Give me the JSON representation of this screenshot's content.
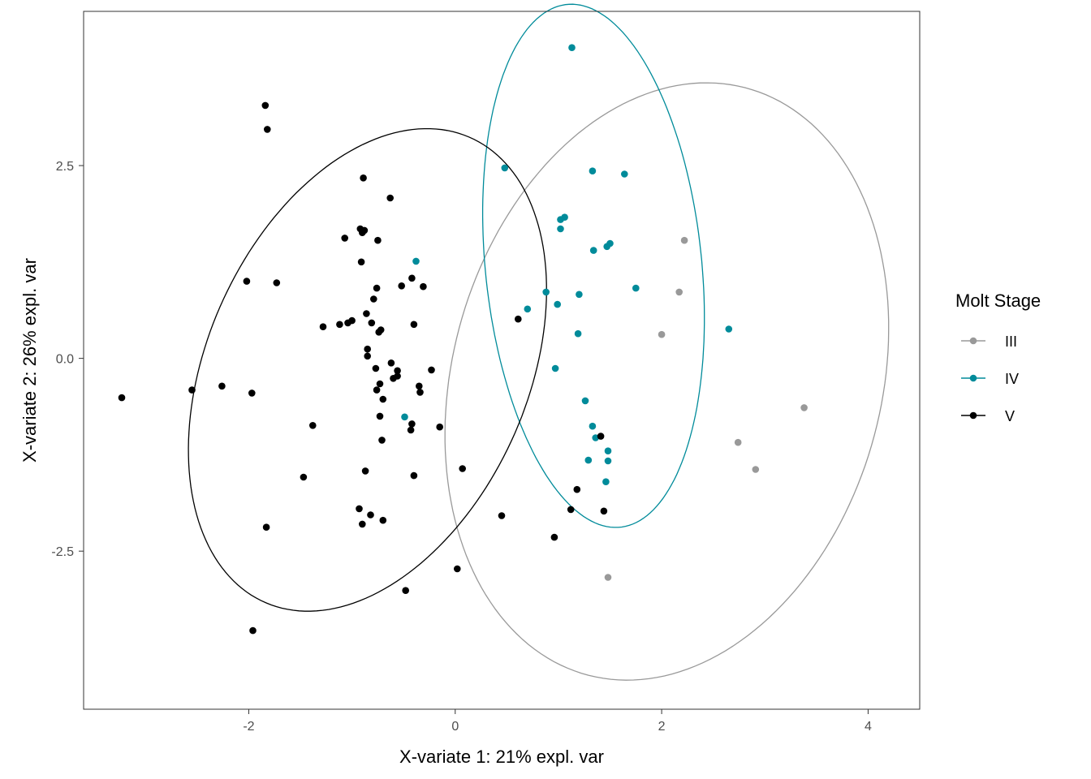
{
  "chart_data": {
    "type": "scatter",
    "title": "",
    "xlabel": "X-variate 1: 21% expl. var",
    "ylabel": "X-variate 2: 26% expl. var",
    "xlim": [
      -3.6,
      4.5
    ],
    "ylim": [
      -4.55,
      4.5
    ],
    "x_ticks": [
      -2,
      0,
      2,
      4
    ],
    "x_tick_labels": [
      "-2",
      "0",
      "2",
      "4"
    ],
    "y_ticks": [
      -2.5,
      0,
      2.5
    ],
    "y_tick_labels": [
      "-2.5",
      "0.0",
      "2.5"
    ],
    "grid": false,
    "legend": {
      "title": "Molt Stage",
      "placement": "right"
    },
    "series": [
      {
        "name": "III",
        "color": "#999999",
        "ellipse": {
          "cx": 2.05,
          "cy": -0.3,
          "rx": 2.1,
          "ry": 3.9,
          "angle_deg": -8
        },
        "points": [
          {
            "x": 2.22,
            "y": 1.53
          },
          {
            "x": 2.17,
            "y": 0.86
          },
          {
            "x": 2.0,
            "y": 0.31
          },
          {
            "x": 3.38,
            "y": -0.64
          },
          {
            "x": 2.74,
            "y": -1.09
          },
          {
            "x": 2.91,
            "y": -1.44
          },
          {
            "x": 1.48,
            "y": -2.84
          }
        ]
      },
      {
        "name": "IV",
        "color": "#008B9A",
        "ellipse": {
          "cx": 1.34,
          "cy": 1.2,
          "rx": 1.05,
          "ry": 3.4,
          "angle_deg": 4
        },
        "points": [
          {
            "x": 1.13,
            "y": 4.03
          },
          {
            "x": 0.48,
            "y": 2.47
          },
          {
            "x": 1.33,
            "y": 2.43
          },
          {
            "x": 1.64,
            "y": 2.39
          },
          {
            "x": 1.06,
            "y": 1.83
          },
          {
            "x": 1.02,
            "y": 1.8
          },
          {
            "x": 1.02,
            "y": 1.68
          },
          {
            "x": 1.5,
            "y": 1.49
          },
          {
            "x": 1.47,
            "y": 1.45
          },
          {
            "x": 1.34,
            "y": 1.4
          },
          {
            "x": -0.38,
            "y": 1.26
          },
          {
            "x": 1.75,
            "y": 0.91
          },
          {
            "x": 0.88,
            "y": 0.86
          },
          {
            "x": 1.2,
            "y": 0.83
          },
          {
            "x": 0.99,
            "y": 0.7
          },
          {
            "x": 0.7,
            "y": 0.64
          },
          {
            "x": 2.65,
            "y": 0.38
          },
          {
            "x": 1.19,
            "y": 0.32
          },
          {
            "x": 0.97,
            "y": -0.13
          },
          {
            "x": 1.26,
            "y": -0.55
          },
          {
            "x": -0.49,
            "y": -0.76
          },
          {
            "x": 1.33,
            "y": -0.88
          },
          {
            "x": 1.36,
            "y": -1.03
          },
          {
            "x": 1.48,
            "y": -1.2
          },
          {
            "x": 1.29,
            "y": -1.32
          },
          {
            "x": 1.48,
            "y": -1.33
          },
          {
            "x": 1.46,
            "y": -1.6
          }
        ]
      },
      {
        "name": "V",
        "color": "#000000",
        "ellipse": {
          "cx": -0.85,
          "cy": -0.15,
          "rx": 1.6,
          "ry": 3.2,
          "angle_deg": -14
        },
        "points": [
          {
            "x": -1.84,
            "y": 3.28
          },
          {
            "x": -1.82,
            "y": 2.97
          },
          {
            "x": -0.89,
            "y": 2.34
          },
          {
            "x": -0.63,
            "y": 2.08
          },
          {
            "x": -0.92,
            "y": 1.68
          },
          {
            "x": -0.88,
            "y": 1.66
          },
          {
            "x": -0.9,
            "y": 1.63
          },
          {
            "x": -1.07,
            "y": 1.56
          },
          {
            "x": -0.75,
            "y": 1.53
          },
          {
            "x": -0.91,
            "y": 1.25
          },
          {
            "x": -0.42,
            "y": 1.04
          },
          {
            "x": -2.02,
            "y": 1.0
          },
          {
            "x": -1.73,
            "y": 0.98
          },
          {
            "x": -0.52,
            "y": 0.94
          },
          {
            "x": -0.31,
            "y": 0.93
          },
          {
            "x": -0.76,
            "y": 0.91
          },
          {
            "x": -0.79,
            "y": 0.77
          },
          {
            "x": -0.86,
            "y": 0.58
          },
          {
            "x": 0.61,
            "y": 0.51
          },
          {
            "x": -1.0,
            "y": 0.49
          },
          {
            "x": -1.04,
            "y": 0.46
          },
          {
            "x": -0.81,
            "y": 0.46
          },
          {
            "x": -1.12,
            "y": 0.44
          },
          {
            "x": -0.4,
            "y": 0.44
          },
          {
            "x": -1.28,
            "y": 0.41
          },
          {
            "x": -0.72,
            "y": 0.37
          },
          {
            "x": -0.74,
            "y": 0.34
          },
          {
            "x": -0.85,
            "y": 0.12
          },
          {
            "x": -0.85,
            "y": 0.03
          },
          {
            "x": -0.62,
            "y": -0.06
          },
          {
            "x": -0.77,
            "y": -0.13
          },
          {
            "x": -0.56,
            "y": -0.16
          },
          {
            "x": -0.23,
            "y": -0.15
          },
          {
            "x": -0.56,
            "y": -0.23
          },
          {
            "x": -0.6,
            "y": -0.26
          },
          {
            "x": -2.26,
            "y": -0.36
          },
          {
            "x": -0.73,
            "y": -0.33
          },
          {
            "x": -0.35,
            "y": -0.36
          },
          {
            "x": -2.55,
            "y": -0.41
          },
          {
            "x": -0.76,
            "y": -0.41
          },
          {
            "x": -1.97,
            "y": -0.45
          },
          {
            "x": -0.34,
            "y": -0.44
          },
          {
            "x": -3.23,
            "y": -0.51
          },
          {
            "x": -0.7,
            "y": -0.53
          },
          {
            "x": -0.73,
            "y": -0.75
          },
          {
            "x": -1.38,
            "y": -0.87
          },
          {
            "x": -0.42,
            "y": -0.85
          },
          {
            "x": -0.15,
            "y": -0.89
          },
          {
            "x": -0.43,
            "y": -0.93
          },
          {
            "x": 1.41,
            "y": -1.01
          },
          {
            "x": -0.71,
            "y": -1.06
          },
          {
            "x": 0.07,
            "y": -1.43
          },
          {
            "x": -0.87,
            "y": -1.46
          },
          {
            "x": -0.4,
            "y": -1.52
          },
          {
            "x": -1.47,
            "y": -1.54
          },
          {
            "x": 1.18,
            "y": -1.7
          },
          {
            "x": -0.93,
            "y": -1.95
          },
          {
            "x": 1.12,
            "y": -1.96
          },
          {
            "x": 1.44,
            "y": -1.98
          },
          {
            "x": -0.82,
            "y": -2.03
          },
          {
            "x": 0.45,
            "y": -2.04
          },
          {
            "x": -0.7,
            "y": -2.1
          },
          {
            "x": -0.9,
            "y": -2.15
          },
          {
            "x": -1.83,
            "y": -2.19
          },
          {
            "x": 0.96,
            "y": -2.32
          },
          {
            "x": 0.02,
            "y": -2.73
          },
          {
            "x": -0.48,
            "y": -3.01
          },
          {
            "x": -1.96,
            "y": -3.53
          }
        ]
      }
    ]
  }
}
